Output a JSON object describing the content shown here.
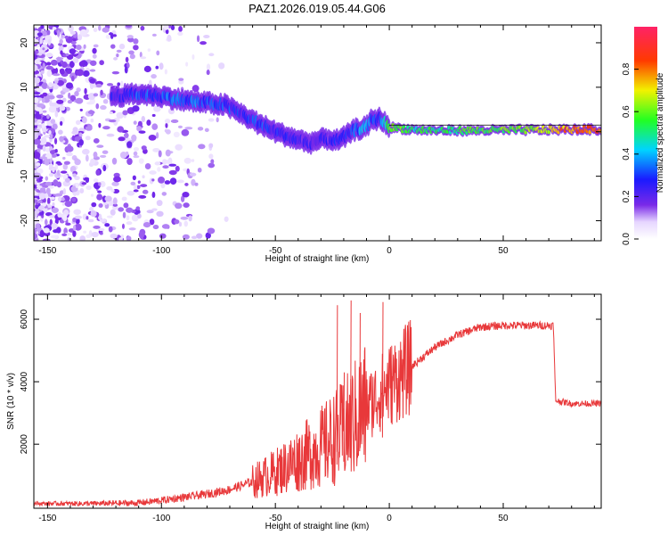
{
  "page": {
    "title": "PAZ1.2026.019.05.44.G06"
  },
  "chart_data": [
    {
      "type": "heatmap",
      "name": "spectrogram",
      "xlabel": "Height of straight line (km)",
      "ylabel": "Frequency (Hz)",
      "xlim": [
        -156,
        93
      ],
      "ylim": [
        -24.5,
        24
      ],
      "xticks": [
        -150,
        -100,
        -50,
        0,
        50
      ],
      "xtick_labels": [
        "-150",
        "-100",
        "-50",
        "0",
        "50"
      ],
      "yticks": [
        -20,
        -10,
        0,
        10,
        20
      ],
      "ytick_labels": [
        "-20",
        "-10",
        "0",
        "10",
        "20"
      ],
      "ridge": {
        "x": [
          -120,
          -110,
          -100,
          -90,
          -80,
          -72,
          -65,
          -58,
          -50,
          -42,
          -35,
          -28,
          -22,
          -15,
          -10,
          -8,
          -4,
          0,
          10,
          20,
          40,
          60,
          80,
          93
        ],
        "y": [
          8,
          8.5,
          8,
          7,
          6.5,
          6,
          4,
          2,
          0,
          -1.5,
          -2.5,
          -1.5,
          -2,
          0.5,
          1,
          2.5,
          3,
          1,
          0.5,
          0.3,
          0.3,
          0.4,
          0.5,
          0.5
        ],
        "amplitude": [
          0.25,
          0.3,
          0.3,
          0.35,
          0.3,
          0.3,
          0.25,
          0.3,
          0.25,
          0.25,
          0.2,
          0.2,
          0.25,
          0.3,
          0.45,
          0.3,
          0.3,
          0.6,
          0.5,
          0.5,
          0.55,
          0.6,
          0.8,
          0.85
        ]
      },
      "colorbar": {
        "label": "Normalized spectral amplitude",
        "ticks": [
          0.0,
          0.2,
          0.4,
          0.6,
          0.8
        ],
        "tick_labels": [
          "0.0",
          "0.2",
          "0.4",
          "0.6",
          "0.8"
        ],
        "range": [
          0,
          1
        ]
      }
    },
    {
      "type": "line",
      "name": "snr",
      "xlabel": "Height of straight line (km)",
      "ylabel": "SNR (10 * v/v)",
      "xlim": [
        -156,
        93
      ],
      "ylim": [
        -50,
        6800
      ],
      "xticks": [
        -150,
        -100,
        -50,
        0,
        50
      ],
      "xtick_labels": [
        "-150",
        "-100",
        "-50",
        "0",
        "50"
      ],
      "yticks": [
        2000,
        4000,
        6000
      ],
      "ytick_labels": [
        "2000",
        "4000",
        "6000"
      ],
      "color": "#e8383a",
      "x": [
        -156,
        -130,
        -110,
        -100,
        -90,
        -80,
        -70,
        -60,
        -50,
        -40,
        -30,
        -20,
        -10,
        0,
        10,
        20,
        30,
        40,
        50,
        60,
        72,
        73,
        80,
        93
      ],
      "y": [
        100,
        100,
        120,
        200,
        300,
        400,
        550,
        800,
        1100,
        1500,
        1900,
        2400,
        3200,
        3900,
        4500,
        5100,
        5500,
        5750,
        5800,
        5800,
        5800,
        3400,
        3300,
        3300
      ],
      "spikes": [
        {
          "x": -17,
          "y": 6600
        },
        {
          "x": -13,
          "y": 6200
        },
        {
          "x": -3,
          "y": 6550
        },
        {
          "x": -23,
          "y": 6450
        },
        {
          "x": -20,
          "y": 4300
        }
      ]
    }
  ]
}
